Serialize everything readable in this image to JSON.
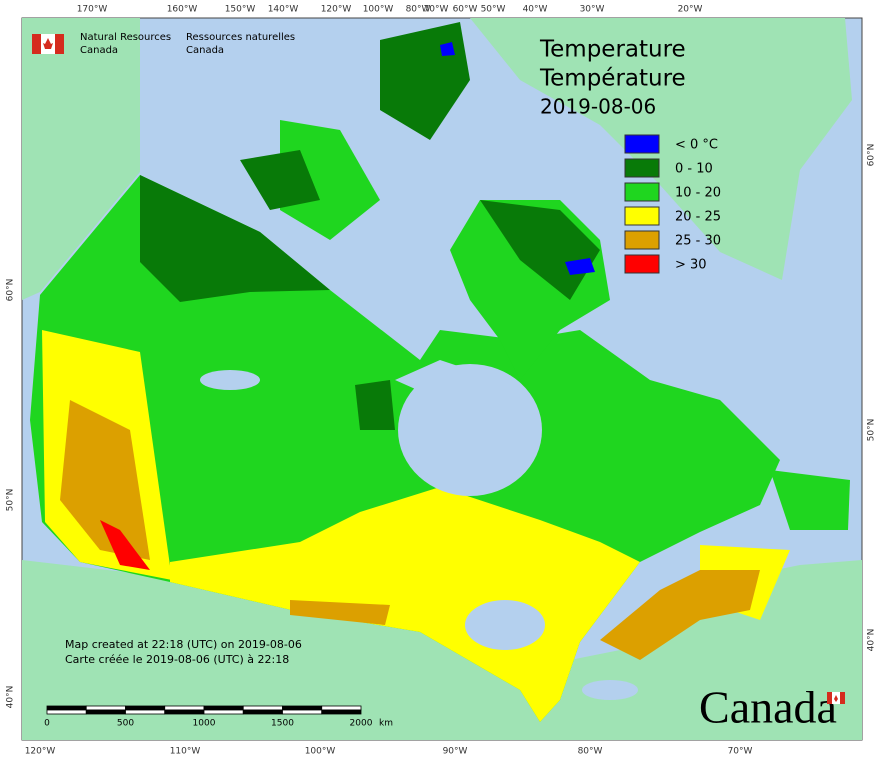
{
  "header": {
    "agency_en": "Natural Resources",
    "agency_en_2": "Canada",
    "agency_fr": "Ressources naturelles",
    "agency_fr_2": "Canada"
  },
  "title": {
    "en": "Temperature",
    "fr": "Température",
    "date": "2019-08-06"
  },
  "legend": [
    {
      "label": "< 0 °C",
      "color": "#0000ff"
    },
    {
      "label": "0 - 10",
      "color": "#087a08"
    },
    {
      "label": "10 - 20",
      "color": "#1fd61f"
    },
    {
      "label": "20 - 25",
      "color": "#ffff00"
    },
    {
      "label": "25 - 30",
      "color": "#dca000"
    },
    {
      "label": "> 30",
      "color": "#ff0000"
    }
  ],
  "credit": {
    "en": "Map created at 22:18 (UTC) on 2019-08-06",
    "fr": "Carte créée le 2019-08-06 (UTC) à 22:18"
  },
  "scale": {
    "labels": [
      "0",
      "500",
      "1000",
      "1500",
      "2000"
    ],
    "unit": "km"
  },
  "graticule": {
    "top": [
      "170°W",
      "160°W",
      "150°W",
      "140°W",
      "120°W",
      "100°W",
      "80°W",
      "70°W",
      "60°W",
      "50°W",
      "40°W",
      "30°W",
      "20°W"
    ],
    "bottom": [
      "120°W",
      "110°W",
      "100°W",
      "90°W",
      "80°W",
      "70°W"
    ],
    "left": [
      "60°N",
      "50°N",
      "40°N"
    ],
    "right": [
      "60°N",
      "50°N",
      "40°N"
    ]
  },
  "wordmark": "Canada"
}
